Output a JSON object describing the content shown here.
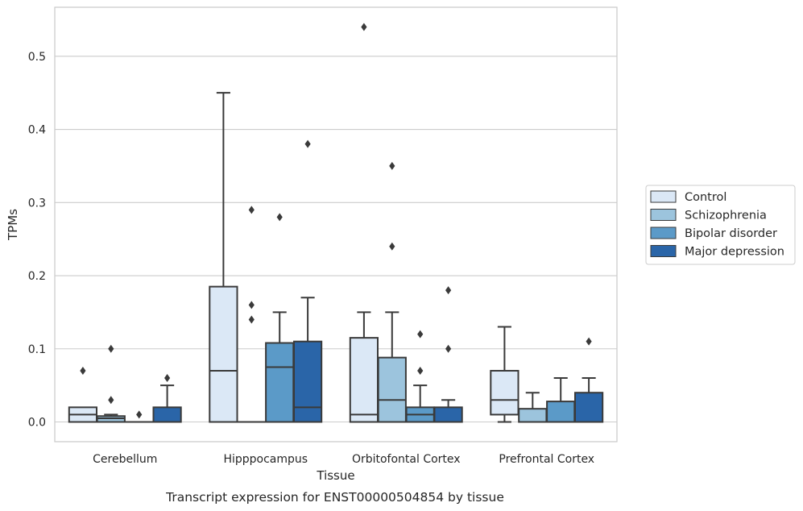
{
  "chart_data": {
    "type": "box",
    "xlabel": "Tissue",
    "ylabel": "TPMs",
    "caption": "Transcript expression for ENST00000504854 by tissue",
    "ylim": [
      -0.027,
      0.567
    ],
    "yticks": [
      "0.0",
      "0.1",
      "0.2",
      "0.3",
      "0.4",
      "0.5"
    ],
    "grid": "horizontal",
    "legend_position": "right",
    "categories": [
      "Cerebellum",
      "Hipppocampus",
      "Orbitofontal Cortex",
      "Prefrontal Cortex"
    ],
    "series": [
      {
        "name": "Control",
        "color": "#dbe8f6",
        "boxes": [
          {
            "whislo": 0.0,
            "q1": 0.0,
            "med": 0.01,
            "q3": 0.02,
            "whishi": 0.02,
            "fliers": [
              0.07
            ]
          },
          {
            "whislo": 0.0,
            "q1": 0.0,
            "med": 0.07,
            "q3": 0.185,
            "whishi": 0.45,
            "fliers": []
          },
          {
            "whislo": 0.0,
            "q1": 0.0,
            "med": 0.01,
            "q3": 0.115,
            "whishi": 0.15,
            "fliers": [
              0.54
            ]
          },
          {
            "whislo": 0.0,
            "q1": 0.01,
            "med": 0.03,
            "q3": 0.07,
            "whishi": 0.13,
            "fliers": []
          }
        ]
      },
      {
        "name": "Schizophrenia",
        "color": "#9cc4dd",
        "boxes": [
          {
            "whislo": 0.0,
            "q1": 0.0,
            "med": 0.005,
            "q3": 0.008,
            "whishi": 0.01,
            "fliers": [
              0.03,
              0.1
            ]
          },
          {
            "whislo": 0.0,
            "q1": 0.0,
            "med": 0.0,
            "q3": 0.0,
            "whishi": 0.0,
            "fliers": [
              0.14,
              0.16,
              0.29
            ]
          },
          {
            "whislo": 0.0,
            "q1": 0.0,
            "med": 0.03,
            "q3": 0.088,
            "whishi": 0.15,
            "fliers": [
              0.24,
              0.35
            ]
          },
          {
            "whislo": 0.0,
            "q1": 0.0,
            "med": 0.0,
            "q3": 0.018,
            "whishi": 0.04,
            "fliers": []
          }
        ]
      },
      {
        "name": "Bipolar disorder",
        "color": "#5b9ac8",
        "boxes": [
          {
            "whislo": 0.0,
            "q1": 0.0,
            "med": 0.0,
            "q3": 0.0,
            "whishi": 0.0,
            "fliers": [
              0.01
            ]
          },
          {
            "whislo": 0.0,
            "q1": 0.0,
            "med": 0.075,
            "q3": 0.108,
            "whishi": 0.15,
            "fliers": [
              0.28
            ]
          },
          {
            "whislo": 0.0,
            "q1": 0.0,
            "med": 0.01,
            "q3": 0.02,
            "whishi": 0.05,
            "fliers": [
              0.07,
              0.12
            ]
          },
          {
            "whislo": 0.0,
            "q1": 0.0,
            "med": 0.0,
            "q3": 0.028,
            "whishi": 0.06,
            "fliers": []
          }
        ]
      },
      {
        "name": "Major depression",
        "color": "#2a65a8",
        "boxes": [
          {
            "whislo": 0.0,
            "q1": 0.0,
            "med": 0.0,
            "q3": 0.02,
            "whishi": 0.05,
            "fliers": [
              0.06
            ]
          },
          {
            "whislo": 0.0,
            "q1": 0.0,
            "med": 0.02,
            "q3": 0.11,
            "whishi": 0.17,
            "fliers": [
              0.38
            ]
          },
          {
            "whislo": 0.0,
            "q1": 0.0,
            "med": 0.0,
            "q3": 0.02,
            "whishi": 0.03,
            "fliers": [
              0.1,
              0.18
            ]
          },
          {
            "whislo": 0.0,
            "q1": 0.0,
            "med": 0.0,
            "q3": 0.04,
            "whishi": 0.06,
            "fliers": [
              0.11
            ]
          }
        ]
      }
    ]
  }
}
